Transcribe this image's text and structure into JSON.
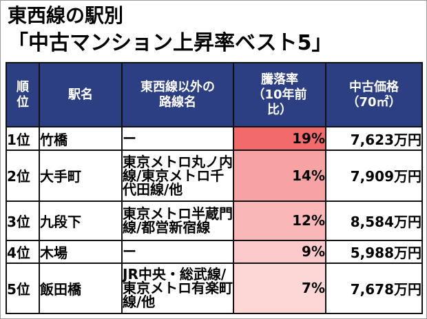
{
  "title": {
    "line1": "東西線の駅別",
    "line2": "「中古マンション上昇率ベスト5」"
  },
  "columns": {
    "rank": [
      "順",
      "位"
    ],
    "station": "駅名",
    "lines": [
      "東西線以外の",
      "路線名"
    ],
    "rate": [
      "騰落率",
      "（10年前",
      "比）"
    ],
    "price": [
      "中古価格",
      "（70㎡）"
    ]
  },
  "rows": [
    {
      "rank": "1位",
      "station": "竹橋",
      "lines": [
        "ー"
      ],
      "rate": "19%",
      "price": "7,623万円",
      "rate_color": "#f26a6a"
    },
    {
      "rank": "2位",
      "station": "大手町",
      "lines": [
        "東京メトロ丸ノ内",
        "線/東京メトロ千",
        "代田線/他"
      ],
      "rate": "14%",
      "price": "7,909万円",
      "rate_color": "#f7a3a3"
    },
    {
      "rank": "3位",
      "station": "九段下",
      "lines": [
        "東京メトロ半蔵門",
        "線/都営新宿線"
      ],
      "rate": "12%",
      "price": "8,584万円",
      "rate_color": "#f9b7b7"
    },
    {
      "rank": "4位",
      "station": "木場",
      "lines": [
        "ー"
      ],
      "rate": "9%",
      "price": "5,988万円",
      "rate_color": "#fccaca"
    },
    {
      "rank": "5位",
      "station": "飯田橋",
      "lines": [
        "JR中央・総武線/",
        "東京メトロ有楽町",
        "線/他"
      ],
      "rate": "7%",
      "price": "7,678万円",
      "rate_color": "#fdd6d6"
    }
  ]
}
